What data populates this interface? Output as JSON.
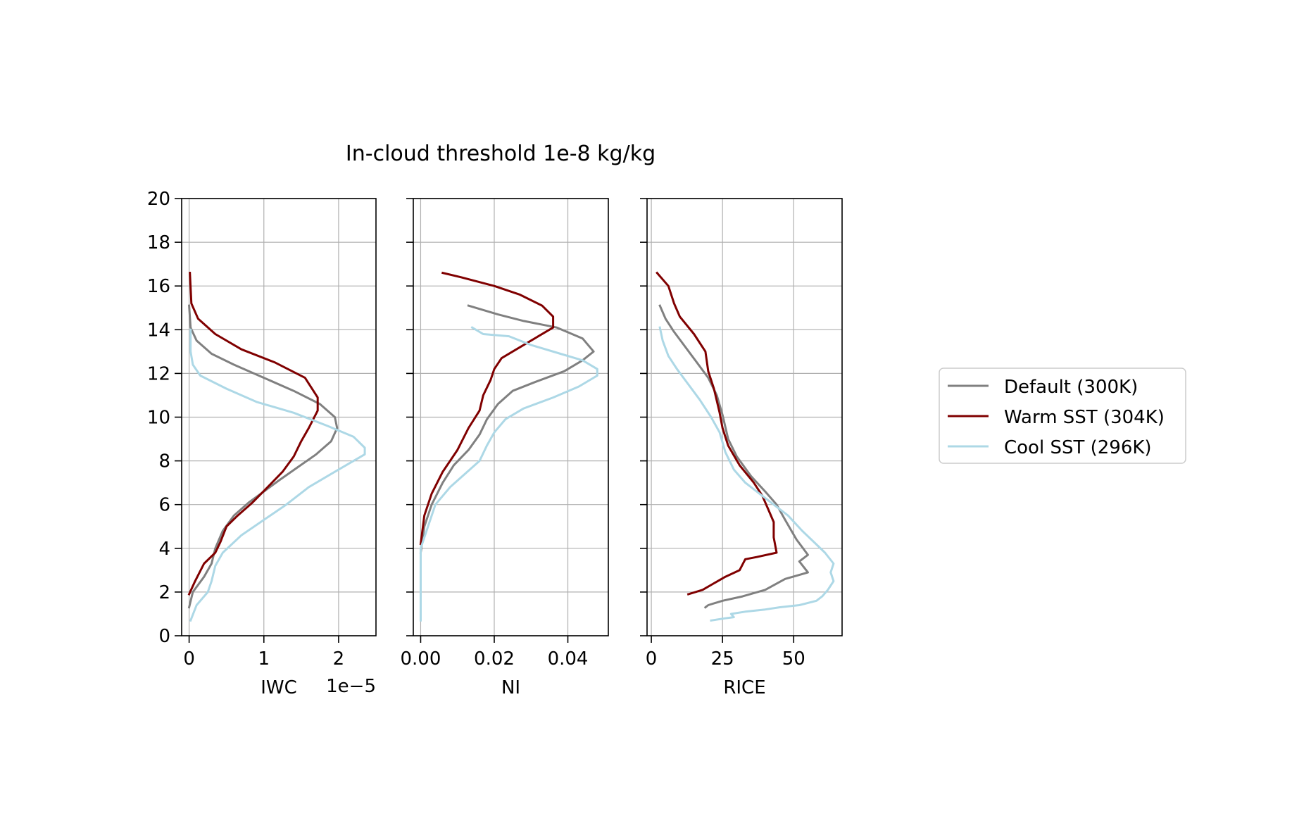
{
  "title": "In-cloud threshold 1e-8 kg/kg",
  "legend": {
    "placement": "center-right",
    "entries": [
      {
        "label": "Default (300K)",
        "color": "#808080"
      },
      {
        "label": "Warm SST (304K)",
        "color": "#800000"
      },
      {
        "label": "Cool SST (296K)",
        "color": "#add8e6"
      }
    ]
  },
  "chart_data": [
    {
      "type": "line",
      "xlabel": "IWC",
      "offset_text": "1e−5",
      "ylabel": "",
      "xlim": [
        -0.1,
        2.5
      ],
      "ylim": [
        0,
        20
      ],
      "xticks": [
        0,
        1,
        2
      ],
      "xtick_labels": [
        "0",
        "1",
        "2"
      ],
      "yticks": [
        0,
        2,
        4,
        6,
        8,
        10,
        12,
        14,
        16,
        18,
        20
      ],
      "ytick_labels": [
        "0",
        "2",
        "4",
        "6",
        "8",
        "10",
        "12",
        "14",
        "16",
        "18",
        "20"
      ],
      "grid": true,
      "series": [
        {
          "name": "Default (300K)",
          "color": "#808080",
          "points": [
            [
              0.0,
              1.3
            ],
            [
              0.05,
              2.0
            ],
            [
              0.2,
              2.7
            ],
            [
              0.3,
              3.3
            ],
            [
              0.35,
              4.0
            ],
            [
              0.45,
              4.8
            ],
            [
              0.6,
              5.5
            ],
            [
              0.8,
              6.1
            ],
            [
              1.0,
              6.6
            ],
            [
              1.2,
              7.1
            ],
            [
              1.45,
              7.7
            ],
            [
              1.7,
              8.3
            ],
            [
              1.9,
              8.9
            ],
            [
              1.98,
              9.5
            ],
            [
              1.95,
              10.0
            ],
            [
              1.75,
              10.6
            ],
            [
              1.4,
              11.2
            ],
            [
              1.0,
              11.8
            ],
            [
              0.6,
              12.4
            ],
            [
              0.3,
              12.9
            ],
            [
              0.1,
              13.5
            ],
            [
              0.02,
              14.1
            ],
            [
              0.0,
              15.1
            ]
          ]
        },
        {
          "name": "Warm SST (304K)",
          "color": "#800000",
          "points": [
            [
              0.0,
              1.9
            ],
            [
              0.08,
              2.5
            ],
            [
              0.2,
              3.3
            ],
            [
              0.35,
              3.8
            ],
            [
              0.42,
              4.3
            ],
            [
              0.5,
              5.0
            ],
            [
              0.65,
              5.5
            ],
            [
              0.85,
              6.1
            ],
            [
              1.05,
              6.8
            ],
            [
              1.25,
              7.5
            ],
            [
              1.4,
              8.2
            ],
            [
              1.5,
              8.9
            ],
            [
              1.6,
              9.5
            ],
            [
              1.72,
              10.3
            ],
            [
              1.72,
              10.9
            ],
            [
              1.55,
              11.8
            ],
            [
              1.15,
              12.5
            ],
            [
              0.7,
              13.1
            ],
            [
              0.35,
              13.8
            ],
            [
              0.12,
              14.5
            ],
            [
              0.03,
              15.2
            ],
            [
              0.01,
              16.6
            ]
          ]
        },
        {
          "name": "Cool SST (296K)",
          "color": "#add8e6",
          "points": [
            [
              0.02,
              0.7
            ],
            [
              0.1,
              1.4
            ],
            [
              0.25,
              2.0
            ],
            [
              0.3,
              2.5
            ],
            [
              0.35,
              3.2
            ],
            [
              0.45,
              3.8
            ],
            [
              0.7,
              4.6
            ],
            [
              1.0,
              5.3
            ],
            [
              1.3,
              6.0
            ],
            [
              1.6,
              6.8
            ],
            [
              1.9,
              7.4
            ],
            [
              2.2,
              8.0
            ],
            [
              2.35,
              8.3
            ],
            [
              2.35,
              8.6
            ],
            [
              2.2,
              9.1
            ],
            [
              1.85,
              9.6
            ],
            [
              1.4,
              10.2
            ],
            [
              0.9,
              10.7
            ],
            [
              0.5,
              11.3
            ],
            [
              0.15,
              11.9
            ],
            [
              0.05,
              12.4
            ],
            [
              0.02,
              13.0
            ],
            [
              0.02,
              14.0
            ]
          ]
        }
      ]
    },
    {
      "type": "line",
      "xlabel": "NI",
      "ylabel": "",
      "xlim": [
        -0.002,
        0.051
      ],
      "ylim": [
        0,
        20
      ],
      "xticks": [
        0.0,
        0.02,
        0.04
      ],
      "xtick_labels": [
        "0.00",
        "0.02",
        "0.04"
      ],
      "yticks": [
        0,
        2,
        4,
        6,
        8,
        10,
        12,
        14,
        16,
        18,
        20
      ],
      "grid": true,
      "series": [
        {
          "name": "Default (300K)",
          "color": "#808080",
          "points": [
            [
              0.0,
              3.8
            ],
            [
              0.001,
              5.0
            ],
            [
              0.003,
              6.0
            ],
            [
              0.006,
              7.0
            ],
            [
              0.009,
              7.8
            ],
            [
              0.013,
              8.5
            ],
            [
              0.016,
              9.2
            ],
            [
              0.018,
              9.9
            ],
            [
              0.021,
              10.6
            ],
            [
              0.025,
              11.2
            ],
            [
              0.031,
              11.6
            ],
            [
              0.039,
              12.1
            ],
            [
              0.044,
              12.6
            ],
            [
              0.047,
              13.0
            ],
            [
              0.044,
              13.6
            ],
            [
              0.037,
              14.1
            ],
            [
              0.028,
              14.4
            ],
            [
              0.021,
              14.7
            ],
            [
              0.013,
              15.1
            ]
          ]
        },
        {
          "name": "Warm SST (304K)",
          "color": "#800000",
          "points": [
            [
              0.0,
              4.2
            ],
            [
              0.001,
              5.5
            ],
            [
              0.003,
              6.5
            ],
            [
              0.006,
              7.5
            ],
            [
              0.01,
              8.5
            ],
            [
              0.013,
              9.5
            ],
            [
              0.016,
              10.3
            ],
            [
              0.017,
              11.0
            ],
            [
              0.019,
              11.7
            ],
            [
              0.02,
              12.2
            ],
            [
              0.022,
              12.7
            ],
            [
              0.025,
              13.0
            ],
            [
              0.03,
              13.5
            ],
            [
              0.036,
              14.1
            ],
            [
              0.036,
              14.6
            ],
            [
              0.033,
              15.1
            ],
            [
              0.027,
              15.6
            ],
            [
              0.02,
              16.0
            ],
            [
              0.011,
              16.4
            ],
            [
              0.006,
              16.6
            ]
          ]
        },
        {
          "name": "Cool SST (296K)",
          "color": "#add8e6",
          "points": [
            [
              0.0,
              0.7
            ],
            [
              0.0,
              2.5
            ],
            [
              0.0,
              4.0
            ],
            [
              0.002,
              5.0
            ],
            [
              0.004,
              6.0
            ],
            [
              0.008,
              6.8
            ],
            [
              0.012,
              7.4
            ],
            [
              0.016,
              8.0
            ],
            [
              0.018,
              8.7
            ],
            [
              0.02,
              9.3
            ],
            [
              0.023,
              9.9
            ],
            [
              0.028,
              10.4
            ],
            [
              0.036,
              10.9
            ],
            [
              0.043,
              11.4
            ],
            [
              0.048,
              11.9
            ],
            [
              0.048,
              12.2
            ],
            [
              0.044,
              12.6
            ],
            [
              0.038,
              12.9
            ],
            [
              0.03,
              13.3
            ],
            [
              0.024,
              13.7
            ],
            [
              0.017,
              13.8
            ],
            [
              0.014,
              14.1
            ]
          ]
        }
      ]
    },
    {
      "type": "line",
      "xlabel": "RICE",
      "ylabel": "",
      "xlim": [
        -1.5,
        67
      ],
      "ylim": [
        0,
        20
      ],
      "xticks": [
        0,
        25,
        50
      ],
      "xtick_labels": [
        "0",
        "25",
        "50"
      ],
      "yticks": [
        0,
        2,
        4,
        6,
        8,
        10,
        12,
        14,
        16,
        18,
        20
      ],
      "grid": true,
      "series": [
        {
          "name": "Default (300K)",
          "color": "#808080",
          "points": [
            [
              19,
              1.3
            ],
            [
              20,
              1.4
            ],
            [
              25,
              1.6
            ],
            [
              32,
              1.8
            ],
            [
              40,
              2.1
            ],
            [
              47,
              2.6
            ],
            [
              55,
              2.9
            ],
            [
              52,
              3.4
            ],
            [
              55,
              3.7
            ],
            [
              51,
              4.4
            ],
            [
              47,
              5.3
            ],
            [
              44,
              6.0
            ],
            [
              40,
              6.6
            ],
            [
              35,
              7.3
            ],
            [
              30,
              8.2
            ],
            [
              27,
              9.0
            ],
            [
              25,
              10.1
            ],
            [
              23,
              11.0
            ],
            [
              20,
              11.8
            ],
            [
              16,
              12.5
            ],
            [
              12,
              13.2
            ],
            [
              8,
              13.9
            ],
            [
              5,
              14.5
            ],
            [
              3,
              15.1
            ]
          ]
        },
        {
          "name": "Warm SST (304K)",
          "color": "#800000",
          "points": [
            [
              13,
              1.9
            ],
            [
              18,
              2.1
            ],
            [
              22,
              2.4
            ],
            [
              26,
              2.7
            ],
            [
              31,
              3.0
            ],
            [
              33,
              3.5
            ],
            [
              37,
              3.6
            ],
            [
              44,
              3.8
            ],
            [
              43,
              4.5
            ],
            [
              43,
              5.2
            ],
            [
              41,
              5.8
            ],
            [
              39,
              6.4
            ],
            [
              36,
              7.0
            ],
            [
              31,
              7.8
            ],
            [
              27,
              8.7
            ],
            [
              25,
              9.5
            ],
            [
              24,
              10.2
            ],
            [
              22,
              11.3
            ],
            [
              20,
              12.1
            ],
            [
              19,
              13.0
            ],
            [
              15,
              13.8
            ],
            [
              10,
              14.6
            ],
            [
              8,
              15.2
            ],
            [
              6,
              16.0
            ],
            [
              2,
              16.6
            ]
          ]
        },
        {
          "name": "Cool SST (296K)",
          "color": "#add8e6",
          "points": [
            [
              21,
              0.7
            ],
            [
              26,
              0.8
            ],
            [
              29,
              0.85
            ],
            [
              28,
              1.0
            ],
            [
              33,
              1.1
            ],
            [
              40,
              1.2
            ],
            [
              45,
              1.3
            ],
            [
              52,
              1.4
            ],
            [
              58,
              1.6
            ],
            [
              60,
              1.8
            ],
            [
              62,
              2.1
            ],
            [
              64,
              2.5
            ],
            [
              63,
              2.9
            ],
            [
              64,
              3.3
            ],
            [
              61,
              3.8
            ],
            [
              57,
              4.3
            ],
            [
              53,
              4.8
            ],
            [
              48,
              5.5
            ],
            [
              43,
              6.0
            ],
            [
              38,
              6.5
            ],
            [
              33,
              7.0
            ],
            [
              29,
              7.6
            ],
            [
              26,
              8.4
            ],
            [
              24,
              9.3
            ],
            [
              21,
              10.0
            ],
            [
              17,
              10.8
            ],
            [
              13,
              11.5
            ],
            [
              9,
              12.2
            ],
            [
              6,
              12.8
            ],
            [
              4,
              13.5
            ],
            [
              3,
              14.1
            ]
          ]
        }
      ]
    }
  ]
}
